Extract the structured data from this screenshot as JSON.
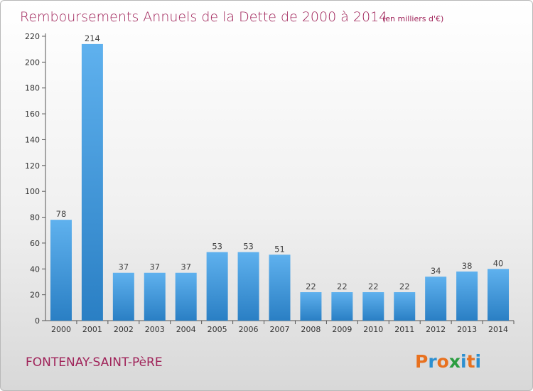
{
  "chart_data": {
    "type": "bar",
    "title": "Remboursements Annuels de la Dette de 2000 à 2014",
    "title_unit": "(en milliers d'€)",
    "categories": [
      "2000",
      "2001",
      "2002",
      "2003",
      "2004",
      "2005",
      "2006",
      "2007",
      "2008",
      "2009",
      "2010",
      "2011",
      "2012",
      "2013",
      "2014"
    ],
    "values": [
      78,
      214,
      37,
      37,
      37,
      53,
      53,
      51,
      22,
      22,
      22,
      22,
      34,
      38,
      40
    ],
    "ylim": [
      0,
      220
    ],
    "yticks": [
      0,
      20,
      40,
      60,
      80,
      100,
      120,
      140,
      160,
      180,
      200,
      220
    ],
    "grid": false,
    "bar_color": "#3d93d6"
  },
  "footer": {
    "commune": "FONTENAY-SAINT-PèRE",
    "logo_text": "Proxiti",
    "logo_colors": [
      "#e8711f",
      "#2c8fd0",
      "#e8711f",
      "#2a9d3f",
      "#2c8fd0",
      "#e8711f",
      "#2c8fd0"
    ]
  }
}
